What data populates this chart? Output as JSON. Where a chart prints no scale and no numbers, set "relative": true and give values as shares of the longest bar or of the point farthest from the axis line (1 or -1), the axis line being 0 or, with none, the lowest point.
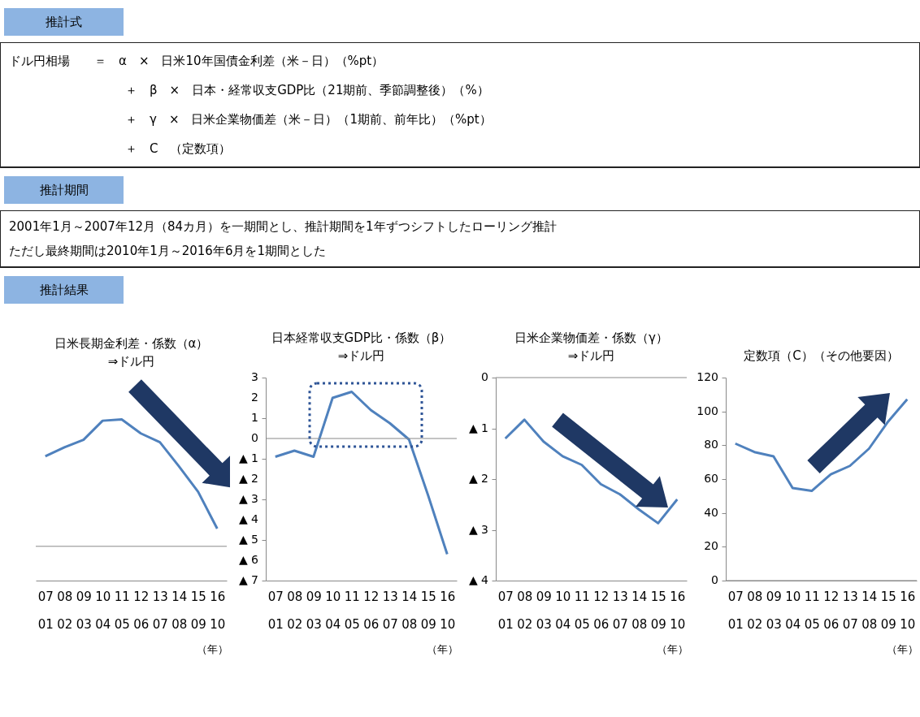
{
  "chart_data": [
    {
      "type": "other",
      "title": "推計式",
      "annotations": [
        "ドル円相場　　＝　α　×　日米10年国債金利差（米－日）（%pt）",
        "＋　β　×　日本・経常収支GDP比（21期前、季節調整後）（%）",
        "＋　γ　×　日米企業物価差（米－日）（1期前、前年比）（%pt）",
        "＋　C　（定数項）"
      ]
    },
    {
      "type": "other",
      "title": "推計期間",
      "annotations": [
        "2001年1月～2007年12月（84カ月）を一期間とし、推計期間を1年ずつシフトしたローリング推計",
        "ただし最終期間は2010年1月～2016年6月を1期間とした"
      ]
    },
    {
      "type": "other",
      "title": "推計結果"
    },
    {
      "type": "line",
      "title": "日米長期金利差・係数（α）\n⇒ドル円",
      "categories": [
        "07\n01",
        "08\n02",
        "09\n03",
        "10\n04",
        "11\n05",
        "12\n06",
        "13\n07",
        "14\n08",
        "15\n09",
        "16\n10"
      ],
      "relative": true,
      "color": "#4f81bd",
      "values": [
        0.71,
        0.78,
        0.84,
        0.99,
        1,
        0.89,
        0.82,
        0.63,
        0.43,
        0.14
      ],
      "annotations": [
        "（年）"
      ]
    },
    {
      "type": "line",
      "title": "日本経常収支GDP比・係数（β）\n⇒ドル円",
      "categories": [
        "07\n01",
        "08\n02",
        "09\n03",
        "10\n04",
        "11\n05",
        "12\n06",
        "13\n07",
        "14\n08",
        "15\n09",
        "16\n10"
      ],
      "ylim": [
        -7,
        3
      ],
      "yticks": [
        {
          "value": -7,
          "label": "▲ 7"
        },
        {
          "value": -6,
          "label": "▲ 6"
        },
        {
          "value": -5,
          "label": "▲ 5"
        },
        {
          "value": -4,
          "label": "▲ 4"
        },
        {
          "value": -3,
          "label": "▲ 3"
        },
        {
          "value": -2,
          "label": "▲ 2"
        },
        {
          "value": -1,
          "label": "▲ 1"
        },
        0,
        1,
        2,
        3
      ],
      "color": "#4f81bd",
      "values": [
        -0.9,
        -0.6,
        -0.9,
        2.0,
        2.3,
        1.4,
        0.75,
        -0.05,
        -2.8,
        -5.7
      ],
      "annotations": [
        "（年）"
      ]
    },
    {
      "type": "line",
      "title": "日米企業物価差・係数（γ）\n⇒ドル円",
      "categories": [
        "07\n01",
        "08\n02",
        "09\n03",
        "10\n04",
        "11\n05",
        "12\n06",
        "13\n07",
        "14\n08",
        "15\n09",
        "16\n10"
      ],
      "ylim": [
        -4,
        0
      ],
      "yticks": [
        {
          "value": -4,
          "label": "▲ 4"
        },
        {
          "value": -3,
          "label": "▲ 3"
        },
        {
          "value": -2,
          "label": "▲ 2"
        },
        {
          "value": -1,
          "label": "▲ 1"
        },
        0
      ],
      "color": "#4f81bd",
      "values": [
        -1.2,
        -0.83,
        -1.26,
        -1.55,
        -1.72,
        -2.1,
        -2.3,
        -2.6,
        -2.87,
        -2.4
      ],
      "annotations": [
        "（年）"
      ]
    },
    {
      "type": "line",
      "title": "定数項（C）（その他要因）",
      "categories": [
        "07\n01",
        "08\n02",
        "09\n03",
        "10\n04",
        "11\n05",
        "12\n06",
        "13\n07",
        "14\n08",
        "15\n09",
        "16\n10"
      ],
      "ylim": [
        0,
        120
      ],
      "yticks": [
        0,
        20,
        40,
        60,
        80,
        100,
        120
      ],
      "color": "#4f81bd",
      "values": [
        81,
        76,
        73.4,
        54.7,
        53,
        62.8,
        67.8,
        78,
        94,
        107.2
      ],
      "annotations": [
        "（年）"
      ]
    }
  ]
}
